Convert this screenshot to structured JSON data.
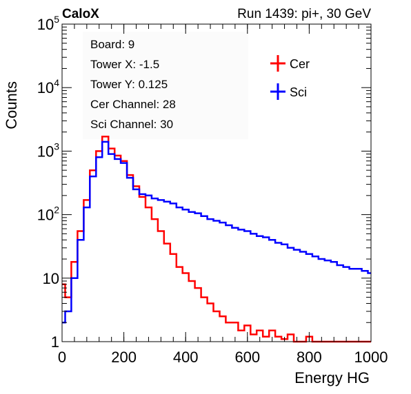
{
  "header": {
    "left_label": "CaloX",
    "right_label": "Run 1439: pi+, 30 GeV"
  },
  "info_box": [
    "Board: 9",
    "Tower X: -1.5",
    "Tower Y: 0.125",
    "Cer Channel: 28",
    "Sci Channel: 30"
  ],
  "chart_data": {
    "type": "line",
    "title": "",
    "xlabel": "Energy HG",
    "ylabel": "Counts",
    "xlim": [
      0,
      1000
    ],
    "ylim": [
      1,
      100000
    ],
    "yscale": "log",
    "grid": false,
    "legend_placement": "top-right",
    "x_ticks": [
      "0",
      "200",
      "400",
      "600",
      "800",
      "1000"
    ],
    "y_ticks": [
      {
        "base": "1",
        "exp": "",
        "value": 1
      },
      {
        "base": "10",
        "exp": "",
        "value": 10
      },
      {
        "base": "10",
        "exp": "2",
        "value": 100
      },
      {
        "base": "10",
        "exp": "3",
        "value": 1000
      },
      {
        "base": "10",
        "exp": "4",
        "value": 10000
      },
      {
        "base": "10",
        "exp": "5",
        "value": 100000
      }
    ],
    "x": [
      0,
      20,
      40,
      60,
      80,
      100,
      120,
      140,
      160,
      180,
      200,
      220,
      240,
      260,
      280,
      300,
      320,
      340,
      360,
      380,
      400,
      420,
      440,
      460,
      480,
      500,
      520,
      540,
      560,
      580,
      600,
      620,
      640,
      660,
      680,
      700,
      720,
      740,
      760,
      780,
      800,
      820,
      840,
      860,
      880,
      900,
      920,
      940,
      960,
      980,
      1000
    ],
    "series": [
      {
        "name": "Cer",
        "color": "#ff0000",
        "values": [
          8,
          5,
          18,
          55,
          170,
          500,
          1000,
          1700,
          1100,
          850,
          700,
          420,
          280,
          190,
          130,
          85,
          55,
          35,
          24,
          15,
          12,
          9,
          7,
          5,
          4,
          3,
          2.5,
          2,
          2,
          1.5,
          1.8,
          1.3,
          1.5,
          1.2,
          1.5,
          1.2,
          1.1,
          1.3,
          1,
          1,
          1.2,
          1,
          1,
          1,
          1,
          1,
          1,
          1,
          1,
          1,
          1
        ]
      },
      {
        "name": "Sci",
        "color": "#0000ff",
        "values": [
          2,
          3,
          10,
          40,
          130,
          400,
          800,
          1400,
          900,
          750,
          650,
          380,
          250,
          210,
          200,
          180,
          170,
          160,
          150,
          130,
          120,
          110,
          105,
          95,
          85,
          80,
          75,
          68,
          62,
          58,
          55,
          50,
          46,
          44,
          40,
          36,
          34,
          30,
          28,
          26,
          24,
          22,
          20,
          19,
          18,
          16,
          15,
          14,
          14,
          13,
          12
        ]
      }
    ]
  }
}
